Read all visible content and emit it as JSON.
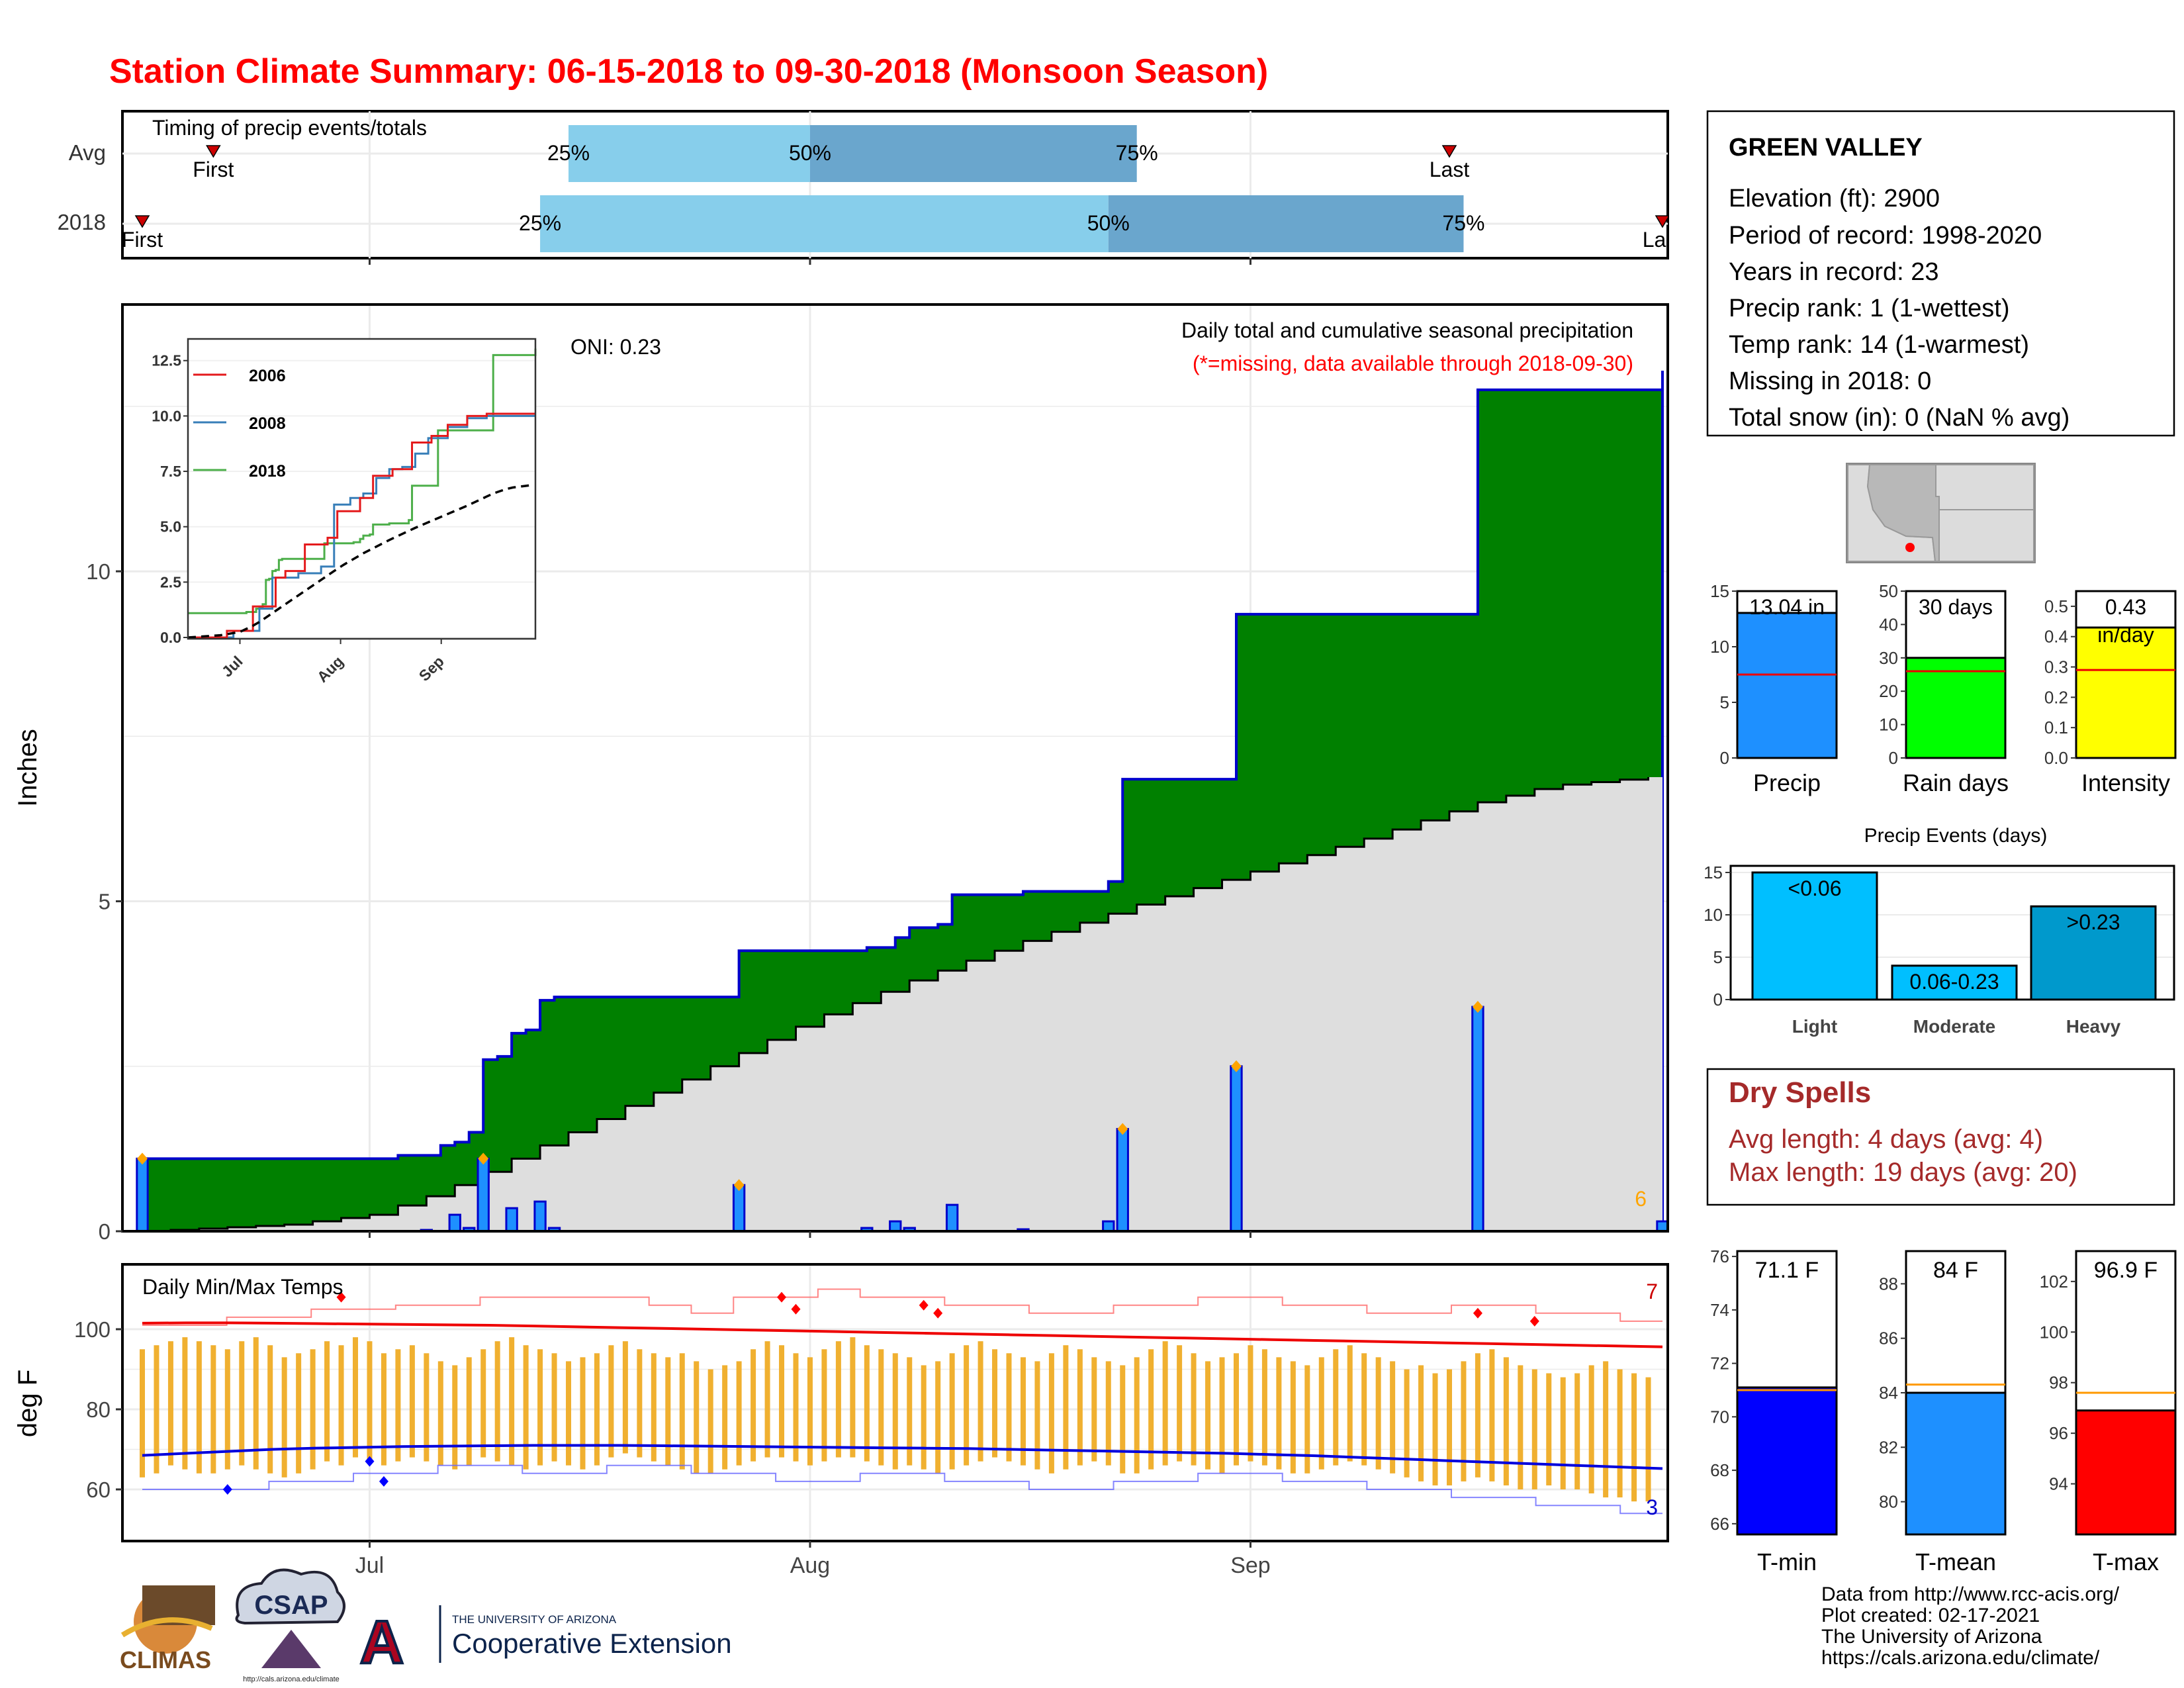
{
  "title": "Station Climate Summary: 06-15-2018 to 09-30-2018 (Monsoon Season)",
  "colors": {
    "title": "#ff0000",
    "cumulative_2018": "#008000",
    "cumulative_avg": "#dedede",
    "daily_bar": "#1e90ff",
    "outline_blue": "#0000cc",
    "light_quartile": "#87ceeb",
    "dark_quartile": "#6aa6cd",
    "tmax_line": "#ee0000",
    "tmin_line": "#0000dd",
    "temp_bar": "#f0b030",
    "rain_days": "#00ff00",
    "intensity": "#ffff00",
    "events_light": "#00bfff",
    "events_heavy": "#0099cc",
    "dry_spells": "#a52a2a",
    "marker_orange": "#ffa500"
  },
  "timing_panel": {
    "title": "Timing of precip events/totals",
    "rows": [
      {
        "label": "Avg",
        "first_label": "First",
        "last_label": "Last",
        "first": "2018-06-20",
        "q25": "2018-07-15",
        "q50": "2018-08-01",
        "q75": "2018-08-24",
        "last": "2018-09-15"
      },
      {
        "label": "2018",
        "first_label": "First",
        "last_label": "Last",
        "first": "2018-06-15",
        "q25": "2018-07-13",
        "q50": "2018-08-22",
        "q75": "2018-09-16",
        "last": "2018-09-30"
      }
    ],
    "pct_labels": [
      "25%",
      "50%",
      "75%"
    ]
  },
  "main_panel": {
    "ylabel": "Inches",
    "yticks": [
      0,
      5,
      10
    ],
    "note": "Daily total and cumulative seasonal precipitation",
    "missing_note": "(*=missing, data available through 2018-09-30)",
    "oni": "ONI: 0.23",
    "corner_count": "6"
  },
  "inset": {
    "yticks": [
      "0.0",
      "2.5",
      "5.0",
      "7.5",
      "10.0",
      "12.5"
    ],
    "xticks": [
      "Jul",
      "Aug",
      "Sep"
    ],
    "series": [
      {
        "name": "2006",
        "color": "#e41a1c"
      },
      {
        "name": "2008",
        "color": "#377eb8"
      },
      {
        "name": "2018",
        "color": "#4daf4a"
      }
    ]
  },
  "temp_panel": {
    "title": "Daily Min/Max Temps",
    "ylabel": "deg F",
    "yticks": [
      60,
      80,
      100
    ],
    "max_count": "7",
    "min_count": "3"
  },
  "xaxis": {
    "ticks": [
      "Jul",
      "Aug",
      "Sep"
    ]
  },
  "station": {
    "name": "GREEN VALLEY",
    "lines": [
      "Elevation (ft): 2900",
      "Period of record: 1998-2020",
      "Years in record: 23",
      "Precip rank: 1 (1-wettest)",
      "Temp rank: 14 (1-warmest)",
      "Missing in 2018: 0",
      "Total snow (in): 0 (NaN % avg)"
    ]
  },
  "precip_bars": {
    "precip": {
      "label": "Precip",
      "value_label": "13.04 in",
      "value": 13.04,
      "avg": 7.5,
      "ymax": 15,
      "yticks": [
        "0",
        "5",
        "10",
        "15"
      ]
    },
    "rain_days": {
      "label": "Rain days",
      "value_label": "30 days",
      "value": 30,
      "avg": 26,
      "ymax": 50,
      "yticks": [
        "0",
        "10",
        "20",
        "30",
        "40",
        "50"
      ]
    },
    "intensity": {
      "label": "Intensity",
      "value_label": "0.43",
      "unit_label": "in/day",
      "value": 0.43,
      "avg": 0.29,
      "ymax": 0.55,
      "yticks": [
        "0.0",
        "0.1",
        "0.2",
        "0.3",
        "0.4",
        "0.5"
      ]
    }
  },
  "precip_events": {
    "title": "Precip Events (days)",
    "yticks": [
      "0",
      "5",
      "10",
      "15"
    ],
    "categories": [
      "Light",
      "Moderate",
      "Heavy"
    ],
    "bar_labels": [
      "<0.06",
      "0.06-0.23",
      ">0.23"
    ],
    "values": [
      15,
      4,
      11
    ]
  },
  "dry_spells": {
    "title": "Dry Spells",
    "avg": "Avg length: 4 days (avg: 4)",
    "max": "Max length: 19 days (avg: 20)"
  },
  "temp_bars": {
    "tmin": {
      "label": "T-min",
      "value_label": "71.1 F",
      "value": 71.1,
      "avg": 71.0,
      "ymin": 65.6,
      "ymax": 76.2,
      "yticks": [
        66,
        68,
        70,
        72,
        74,
        76
      ]
    },
    "tmean": {
      "label": "T-mean",
      "value_label": "84 F",
      "value": 84.0,
      "avg": 84.3,
      "ymin": 78.8,
      "ymax": 89.2,
      "yticks": [
        80,
        82,
        84,
        86,
        88
      ]
    },
    "tmax": {
      "label": "T-max",
      "value_label": "96.9 F",
      "value": 96.9,
      "avg": 97.6,
      "ymin": 92.0,
      "ymax": 103.2,
      "yticks": [
        94,
        96,
        98,
        100,
        102
      ]
    }
  },
  "credits": [
    "Data from http://www.rcc-acis.org/",
    "Plot created: 02-17-2021",
    "The University of Arizona",
    "https://cals.arizona.edu/climate/"
  ],
  "logos": {
    "climas": "CLIMAS",
    "csap": "CSAP",
    "csap_url": "http://cals.arizona.edu/climate",
    "ua_small": "THE UNIVERSITY OF ARIZONA",
    "ua_big": "Cooperative Extension"
  },
  "chart_data": {
    "type": "area",
    "title": "Daily total and cumulative seasonal precipitation",
    "ylabel": "Inches",
    "ylim": [
      0,
      13.5
    ],
    "x_start": "2018-06-15",
    "x_end": "2018-09-30",
    "cumulative_2018_steps": [
      {
        "date": "2018-06-15",
        "value": 1.1
      },
      {
        "date": "2018-07-03",
        "value": 1.15
      },
      {
        "date": "2018-07-06",
        "value": 1.3
      },
      {
        "date": "2018-07-07",
        "value": 1.35
      },
      {
        "date": "2018-07-08",
        "value": 1.5
      },
      {
        "date": "2018-07-09",
        "value": 2.6
      },
      {
        "date": "2018-07-10",
        "value": 2.65
      },
      {
        "date": "2018-07-11",
        "value": 3.0
      },
      {
        "date": "2018-07-12",
        "value": 3.05
      },
      {
        "date": "2018-07-13",
        "value": 3.5
      },
      {
        "date": "2018-07-14",
        "value": 3.55
      },
      {
        "date": "2018-07-27",
        "value": 4.25
      },
      {
        "date": "2018-08-05",
        "value": 4.3
      },
      {
        "date": "2018-08-07",
        "value": 4.45
      },
      {
        "date": "2018-08-08",
        "value": 4.6
      },
      {
        "date": "2018-08-10",
        "value": 4.65
      },
      {
        "date": "2018-08-11",
        "value": 5.1
      },
      {
        "date": "2018-08-16",
        "value": 5.15
      },
      {
        "date": "2018-08-22",
        "value": 5.3
      },
      {
        "date": "2018-08-23",
        "value": 6.85
      },
      {
        "date": "2018-08-31",
        "value": 9.35
      },
      {
        "date": "2018-09-17",
        "value": 12.75
      },
      {
        "date": "2018-09-30",
        "value": 13.04
      }
    ],
    "cumulative_avg": [
      {
        "date": "2018-06-15",
        "value": 0.0
      },
      {
        "date": "2018-06-25",
        "value": 0.1
      },
      {
        "date": "2018-07-01",
        "value": 0.25
      },
      {
        "date": "2018-07-06",
        "value": 0.6
      },
      {
        "date": "2018-07-12",
        "value": 1.2
      },
      {
        "date": "2018-07-20",
        "value": 2.0
      },
      {
        "date": "2018-07-27",
        "value": 2.7
      },
      {
        "date": "2018-08-01",
        "value": 3.2
      },
      {
        "date": "2018-08-08",
        "value": 3.8
      },
      {
        "date": "2018-08-16",
        "value": 4.4
      },
      {
        "date": "2018-08-24",
        "value": 4.95
      },
      {
        "date": "2018-09-01",
        "value": 5.45
      },
      {
        "date": "2018-09-09",
        "value": 5.95
      },
      {
        "date": "2018-09-17",
        "value": 6.5
      },
      {
        "date": "2018-09-22",
        "value": 6.75
      },
      {
        "date": "2018-09-30",
        "value": 6.9
      }
    ],
    "daily_precip": [
      {
        "date": "2018-06-15",
        "value": 1.1
      },
      {
        "date": "2018-07-05",
        "value": 0.02
      },
      {
        "date": "2018-07-07",
        "value": 0.25
      },
      {
        "date": "2018-07-08",
        "value": 0.05
      },
      {
        "date": "2018-07-09",
        "value": 1.1
      },
      {
        "date": "2018-07-11",
        "value": 0.35
      },
      {
        "date": "2018-07-13",
        "value": 0.45
      },
      {
        "date": "2018-07-14",
        "value": 0.05
      },
      {
        "date": "2018-07-27",
        "value": 0.7
      },
      {
        "date": "2018-08-05",
        "value": 0.05
      },
      {
        "date": "2018-08-07",
        "value": 0.15
      },
      {
        "date": "2018-08-08",
        "value": 0.05
      },
      {
        "date": "2018-08-11",
        "value": 0.4
      },
      {
        "date": "2018-08-16",
        "value": 0.03
      },
      {
        "date": "2018-08-22",
        "value": 0.15
      },
      {
        "date": "2018-08-23",
        "value": 1.55
      },
      {
        "date": "2018-08-31",
        "value": 2.5
      },
      {
        "date": "2018-09-17",
        "value": 3.4
      },
      {
        "date": "2018-09-30",
        "value": 0.15
      }
    ],
    "tmax_daily": [
      101,
      102,
      103,
      104,
      103,
      102,
      101,
      103,
      104,
      102,
      99,
      100,
      101,
      103,
      102,
      104,
      103,
      100,
      101,
      102,
      100,
      98,
      97,
      99,
      101,
      103,
      104,
      102,
      101,
      100,
      98,
      99,
      100,
      102,
      103,
      101,
      100,
      99,
      100,
      98,
      96,
      97,
      98,
      101,
      103,
      102,
      100,
      99,
      101,
      103,
      104,
      102,
      101,
      100,
      99,
      97,
      98,
      100,
      102,
      103,
      101,
      100,
      99,
      98,
      100,
      102,
      101,
      99,
      98,
      97,
      99,
      101,
      103,
      102,
      100,
      98,
      99,
      100,
      102,
      101,
      99,
      98,
      97,
      99,
      101,
      102,
      100,
      99,
      98,
      96,
      97,
      95,
      96,
      98,
      100,
      101,
      99,
      97,
      96,
      95,
      94,
      95,
      97,
      98,
      96,
      95,
      94
    ],
    "tmin_daily": [
      69,
      70,
      72,
      71,
      70,
      70,
      71,
      72,
      71,
      70,
      69,
      70,
      71,
      73,
      72,
      74,
      73,
      72,
      73,
      74,
      73,
      72,
      71,
      72,
      74,
      73,
      72,
      71,
      72,
      73,
      72,
      71,
      72,
      74,
      75,
      74,
      73,
      72,
      71,
      70,
      70,
      71,
      72,
      73,
      74,
      74,
      73,
      72,
      73,
      74,
      74,
      73,
      72,
      71,
      72,
      71,
      70,
      71,
      72,
      73,
      74,
      73,
      72,
      71,
      70,
      71,
      72,
      73,
      72,
      70,
      70,
      71,
      72,
      73,
      72,
      71,
      70,
      72,
      73,
      72,
      71,
      70,
      70,
      71,
      72,
      73,
      72,
      71,
      70,
      69,
      68,
      67,
      67,
      68,
      69,
      68,
      67,
      66,
      66,
      67,
      66,
      66,
      65,
      64,
      64,
      63,
      63
    ],
    "tmax_avg": [
      101.5,
      101.6,
      101.6,
      101.5,
      101.4,
      101.3,
      101.2,
      101.1,
      101.0,
      100.8,
      100.6,
      100.4,
      100.2,
      100.0,
      99.8,
      99.6,
      99.4,
      99.2,
      99.0,
      98.8,
      98.6,
      98.4,
      98.2,
      98.0,
      97.8,
      97.6,
      97.4,
      97.2,
      97.0,
      96.8,
      96.6,
      96.4,
      96.2,
      96.0,
      95.8,
      95.6
    ],
    "tmin_avg": [
      68.5,
      69.0,
      69.5,
      70.0,
      70.3,
      70.5,
      70.7,
      70.8,
      70.9,
      71.0,
      71.0,
      71.0,
      70.9,
      70.8,
      70.7,
      70.6,
      70.5,
      70.4,
      70.3,
      70.2,
      70.0,
      69.8,
      69.6,
      69.4,
      69.2,
      69.0,
      68.7,
      68.4,
      68.0,
      67.6,
      67.2,
      66.8,
      66.4,
      66.0,
      65.6,
      65.2
    ],
    "tmax_record": [
      101,
      101,
      103,
      103,
      105,
      105,
      106,
      106,
      108,
      108,
      108,
      108,
      106,
      104,
      108,
      108,
      110,
      108,
      108,
      106,
      106,
      104,
      104,
      106,
      106,
      108,
      108,
      106,
      106,
      104,
      104,
      106,
      106,
      104,
      104,
      102,
      102
    ],
    "tmin_record": [
      60,
      60,
      60,
      62,
      62,
      64,
      64,
      66,
      66,
      64,
      64,
      66,
      66,
      64,
      64,
      62,
      62,
      64,
      64,
      62,
      62,
      60,
      60,
      62,
      62,
      64,
      64,
      62,
      62,
      60,
      60,
      58,
      58,
      56,
      56,
      54,
      54
    ]
  }
}
